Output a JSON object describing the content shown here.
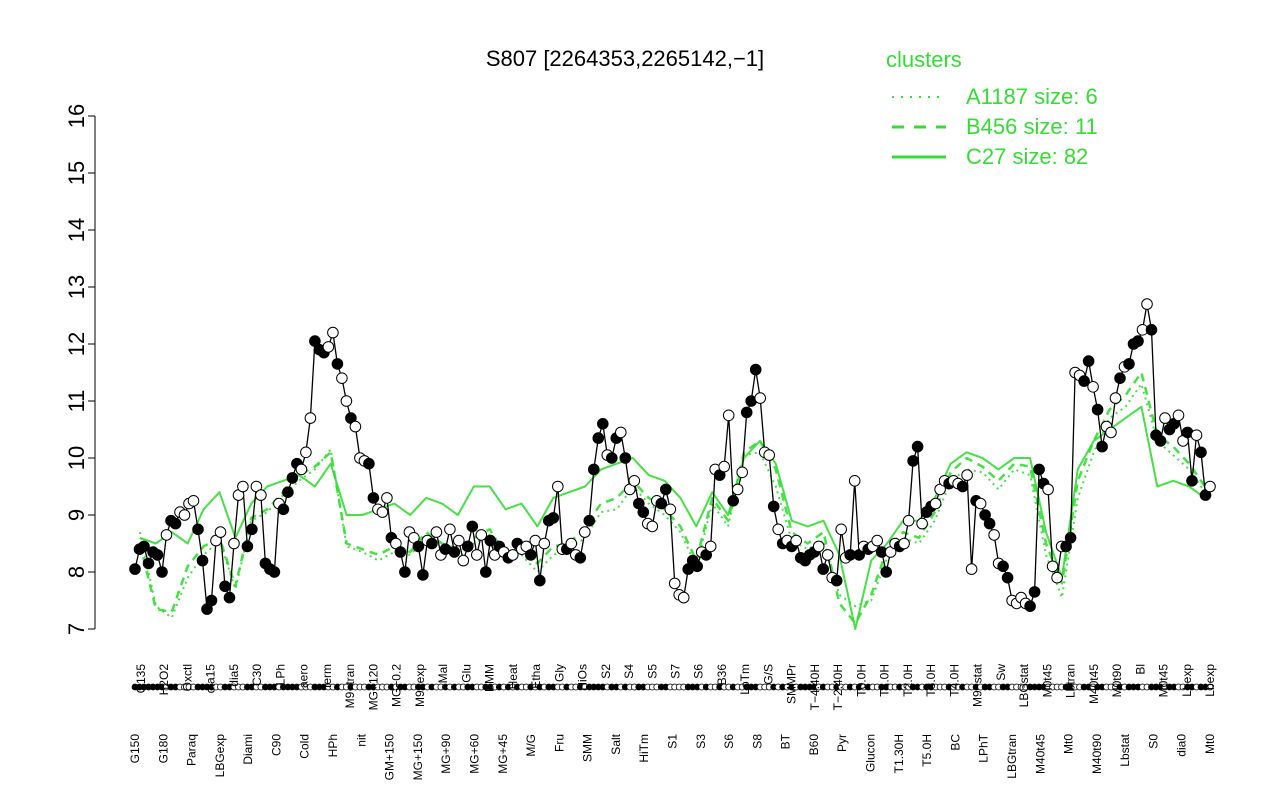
{
  "chart_data": {
    "type": "line",
    "title": "S807 [2264353,2265142,−1]",
    "xlabel": "",
    "ylabel": "",
    "ylim": [
      7,
      16
    ],
    "yticks": [
      7,
      8,
      9,
      10,
      11,
      12,
      13,
      14,
      15,
      16
    ],
    "grid": false,
    "legend": {
      "title": "clusters",
      "placement": "top-right",
      "entries": [
        {
          "label": "A1187 size: 6",
          "style": "dotted"
        },
        {
          "label": "B456 size: 11",
          "style": "dashed"
        },
        {
          "label": "C27 size: 82",
          "style": "solid"
        }
      ]
    },
    "x_tick_labels": [
      {
        "row": "upper",
        "labels": [
          "G135",
          "H2O2",
          "Oxctl",
          "dia15",
          "dia5",
          "C30",
          "LPh",
          "aero",
          "ferm",
          "M9−tran",
          "MG+120",
          "MG−0.2",
          "M9−exp",
          "Mal",
          "Glu",
          "BMM",
          "Heat",
          "Etha",
          "Gly",
          "HiOs",
          "S2",
          "S4",
          "S5",
          "S7",
          "S6",
          "B36",
          "LoTm",
          "G/S",
          "SMMPr",
          "T−4.40H",
          "T−2.40H",
          "T0.0H",
          "T1.0H",
          "T2.0H",
          "T3.0H",
          "T4.0H",
          "M9−stat",
          "Sw",
          "LBGstat",
          "M0t45",
          "Lbtran",
          "M40t45",
          "M0t90",
          "Bl",
          "M0t45",
          "Lbexp",
          "Lbexp"
        ]
      },
      {
        "row": "lower",
        "labels": [
          "G150",
          "G180",
          "Paraq",
          "LBGexp",
          "Diami",
          "C90",
          "Cold",
          "HPh",
          "nit",
          "GM+150",
          "MG+150",
          "MG+90",
          "MG+60",
          "MG+45",
          "M/G",
          "Fru",
          "SMM",
          "Salt",
          "HiTm",
          "S1",
          "S3",
          "S6",
          "S8",
          "BT",
          "B60",
          "Pyr",
          "Glucon",
          "T1.30H",
          "T5.0H",
          "BC",
          "LPhT",
          "LBGtran",
          "M40t45",
          "Mt0",
          "M40t90",
          "Lbstat",
          "S0",
          "dia0",
          "Mt0"
        ]
      }
    ],
    "series": [
      {
        "name": "points",
        "values": [
          8.05,
          8.4,
          8.45,
          8.15,
          8.35,
          8.3,
          8.0,
          8.65,
          8.9,
          8.85,
          9.05,
          9.0,
          9.2,
          9.25,
          8.75,
          8.2,
          7.35,
          7.5,
          8.55,
          8.7,
          7.75,
          7.55,
          8.5,
          9.35,
          9.5,
          8.45,
          8.75,
          9.5,
          9.35,
          8.15,
          8.05,
          8.0,
          9.2,
          9.1,
          9.4,
          9.65,
          9.9,
          9.8,
          10.1,
          10.7,
          12.05,
          11.9,
          11.85,
          11.95,
          12.2,
          11.65,
          11.4,
          11.0,
          10.7,
          10.55,
          10.0,
          9.95,
          9.9,
          9.3,
          9.1,
          9.05,
          9.3,
          8.6,
          8.5,
          8.35,
          8.0,
          8.7,
          8.6,
          8.45,
          7.95,
          8.55,
          8.5,
          8.7,
          8.3,
          8.4,
          8.75,
          8.35,
          8.55,
          8.2,
          8.45,
          8.8,
          8.3,
          8.65,
          8.0,
          8.55,
          8.3,
          8.45,
          8.35,
          8.25,
          8.3,
          8.5,
          8.4,
          8.45,
          8.3,
          8.55,
          7.85,
          8.5,
          8.9,
          8.95,
          9.5,
          8.4,
          8.4,
          8.5,
          8.3,
          8.25,
          8.7,
          8.9,
          9.8,
          10.35,
          10.6,
          10.05,
          10.0,
          10.35,
          10.45,
          10.0,
          9.45,
          9.6,
          9.2,
          9.05,
          8.85,
          8.8,
          9.25,
          9.2,
          9.45,
          9.1,
          7.8,
          7.6,
          7.55,
          8.05,
          8.2,
          8.1,
          8.35,
          8.3,
          8.45,
          9.8,
          9.7,
          9.85,
          10.75,
          9.25,
          9.45,
          9.75,
          10.8,
          11.0,
          11.55,
          11.05,
          10.1,
          10.05,
          9.15,
          8.75,
          8.5,
          8.55,
          8.45,
          8.55,
          8.25,
          8.2,
          8.3,
          8.35,
          8.45,
          8.05,
          8.3,
          7.9,
          7.85,
          8.75,
          8.25,
          8.3,
          9.6,
          8.3,
          8.45,
          8.4,
          8.45,
          8.55,
          8.35,
          8.0,
          8.35,
          8.5,
          8.45,
          8.5,
          8.9,
          9.95,
          10.2,
          8.85,
          9.05,
          9.15,
          9.2,
          9.45,
          9.6,
          9.55,
          9.6,
          9.55,
          9.5,
          9.7,
          8.05,
          9.25,
          9.2,
          9.0,
          8.85,
          8.65,
          8.15,
          8.1,
          7.9,
          7.5,
          7.45,
          7.55,
          7.45,
          7.4,
          7.65,
          9.8,
          9.55,
          9.45,
          8.1,
          7.9,
          8.45,
          8.45,
          8.6,
          11.5,
          11.45,
          11.35,
          11.7,
          11.25,
          10.85,
          10.2,
          10.55,
          10.45,
          11.05,
          11.4,
          11.6,
          11.65,
          12.0,
          12.05,
          12.25,
          12.7,
          12.25,
          10.4,
          10.3,
          10.7,
          10.5,
          10.6,
          10.75,
          10.3,
          10.45,
          9.6,
          10.4,
          10.1,
          9.35,
          9.5
        ],
        "filled": [
          1,
          1,
          1,
          1,
          1,
          1,
          1,
          0,
          1,
          1,
          0,
          0,
          0,
          0,
          1,
          1,
          1,
          1,
          0,
          0,
          1,
          1,
          0,
          0,
          0,
          1,
          1,
          0,
          0,
          1,
          1,
          1,
          0,
          1,
          1,
          1,
          1,
          0,
          0,
          0,
          1,
          1,
          1,
          0,
          0,
          1,
          0,
          0,
          1,
          0,
          0,
          0,
          1,
          1,
          0,
          0,
          0,
          1,
          0,
          1,
          1,
          0,
          0,
          1,
          1,
          0,
          1,
          0,
          0,
          1,
          0,
          1,
          0,
          0,
          1,
          1,
          0,
          0,
          1,
          1,
          0,
          1,
          0,
          1,
          0,
          1,
          0,
          0,
          1,
          0,
          1,
          0,
          1,
          1,
          0,
          0,
          1,
          0,
          0,
          1,
          0,
          1,
          1,
          1,
          1,
          0,
          1,
          1,
          0,
          1,
          0,
          0,
          1,
          1,
          0,
          0,
          0,
          1,
          1,
          0,
          0,
          0,
          0,
          1,
          1,
          1,
          0,
          1,
          0,
          0,
          1,
          0,
          0,
          1,
          0,
          0,
          1,
          1,
          1,
          0,
          0,
          0,
          1,
          0,
          1,
          0,
          1,
          0,
          1,
          1,
          1,
          1,
          0,
          1,
          0,
          0,
          1,
          0,
          0,
          1,
          0,
          1,
          0,
          1,
          0,
          0,
          1,
          1,
          0,
          0,
          1,
          0,
          0,
          1,
          1,
          0,
          1,
          1,
          0,
          0,
          0,
          1,
          0,
          0,
          1,
          0,
          0,
          1,
          0,
          1,
          1,
          0,
          0,
          1,
          1,
          0,
          0,
          0,
          0,
          1,
          1,
          1,
          1,
          0,
          0,
          0,
          0,
          1,
          1,
          0,
          0,
          1,
          1,
          0,
          1,
          1,
          0,
          0,
          0,
          1,
          0,
          1,
          1,
          1,
          0,
          0,
          1,
          1,
          1,
          0,
          1,
          1,
          0,
          0,
          1,
          1,
          0,
          1,
          1,
          0,
          1,
          0,
          1,
          0,
          1,
          1,
          0
        ]
      },
      {
        "name": "A1187 size: 6",
        "style": "dotted",
        "values": [
          8.7,
          7.4,
          7.2,
          7.9,
          8.3,
          8.55,
          7.7,
          8.9,
          9.05,
          9.35,
          9.6,
          9.8,
          10.15,
          8.45,
          8.35,
          8.2,
          8.35,
          8.3,
          8.6,
          8.4,
          8.35,
          8.5,
          8.65,
          8.2,
          8.3,
          8.0,
          8.3,
          8.4,
          8.6,
          9.05,
          9.1,
          9.5,
          9.2,
          9.0,
          8.7,
          8.1,
          9.2,
          8.8,
          10.05,
          10.1,
          9.5,
          8.55,
          8.4,
          8.55,
          7.6,
          7.4,
          7.5,
          8.25,
          8.6,
          8.5,
          8.9,
          9.6,
          9.8,
          9.75,
          9.45,
          9.8,
          9.7,
          8.3,
          7.55,
          9.3,
          10.1,
          10.7,
          10.9,
          11.3,
          10.3,
          10.05,
          9.8,
          9.4
        ]
      },
      {
        "name": "B456 size: 11",
        "style": "dashed",
        "values": [
          8.5,
          7.35,
          7.3,
          8.1,
          8.45,
          8.6,
          7.75,
          8.95,
          9.1,
          9.4,
          9.7,
          9.85,
          10.1,
          8.5,
          8.4,
          8.3,
          8.45,
          8.35,
          8.7,
          8.5,
          8.4,
          8.6,
          8.75,
          8.3,
          8.4,
          8.15,
          8.45,
          8.5,
          8.8,
          9.2,
          9.3,
          9.6,
          9.3,
          9.1,
          8.8,
          8.2,
          9.3,
          8.9,
          10.1,
          10.3,
          9.8,
          8.7,
          8.5,
          8.7,
          7.45,
          7.1,
          7.6,
          8.4,
          8.7,
          8.6,
          9.05,
          9.75,
          10.0,
          9.85,
          9.6,
          9.9,
          9.85,
          8.5,
          7.8,
          9.6,
          10.3,
          10.85,
          11.1,
          11.5,
          10.4,
          10.2,
          9.9,
          9.5
        ]
      },
      {
        "name": "C27 size: 82",
        "style": "solid",
        "values": [
          8.6,
          8.5,
          8.7,
          8.5,
          9.1,
          9.4,
          8.6,
          9.2,
          9.5,
          9.6,
          9.7,
          9.5,
          9.9,
          9.0,
          9.0,
          9.1,
          9.2,
          9.0,
          9.3,
          9.2,
          9.0,
          9.5,
          9.5,
          9.1,
          9.2,
          8.8,
          9.3,
          9.4,
          9.5,
          9.8,
          9.9,
          10.0,
          9.7,
          9.6,
          9.3,
          8.8,
          9.4,
          9.0,
          10.0,
          10.3,
          9.9,
          8.9,
          8.8,
          8.9,
          8.3,
          7.0,
          8.2,
          8.5,
          8.9,
          8.9,
          9.3,
          9.9,
          10.1,
          10.0,
          9.8,
          10.0,
          10.0,
          8.7,
          7.9,
          9.8,
          10.3,
          10.5,
          10.7,
          10.9,
          9.5,
          9.6,
          9.5,
          9.3
        ]
      }
    ]
  }
}
